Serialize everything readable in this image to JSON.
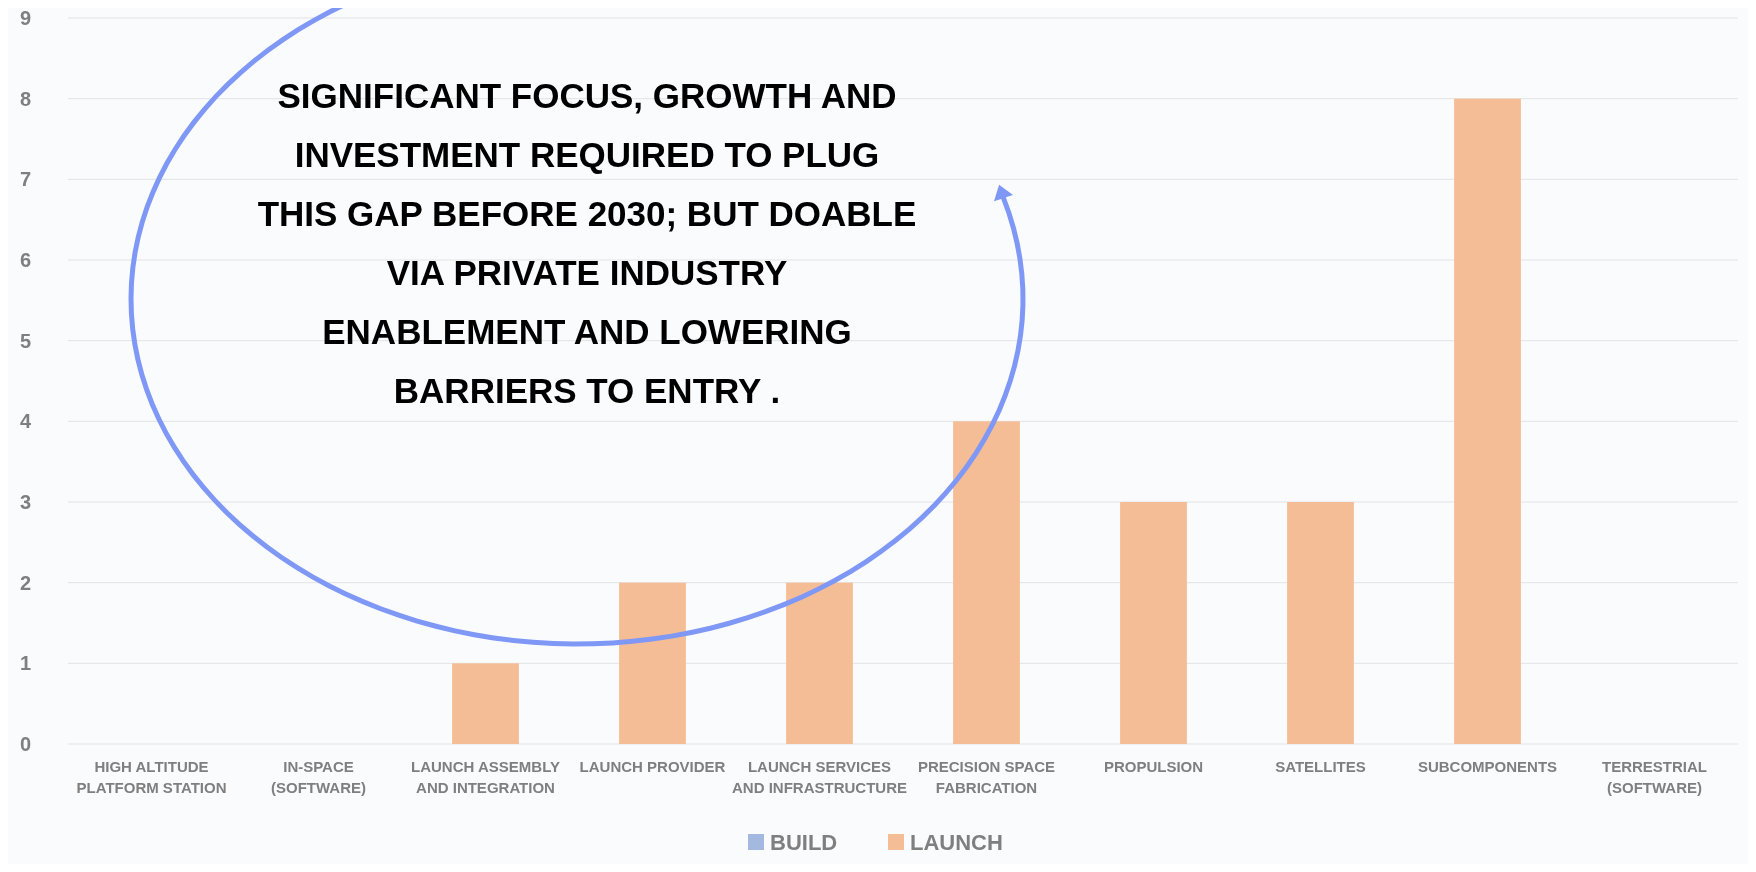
{
  "chart_data": {
    "type": "bar",
    "categories": [
      "HIGH ALTITUDE PLATFORM STATION",
      "IN-SPACE (SOFTWARE)",
      "LAUNCH ASSEMBLY AND INTEGRATION",
      "LAUNCH PROVIDER",
      "LAUNCH SERVICES AND INFRASTRUCTURE",
      "PRECISION SPACE FABRICATION",
      "PROPULSION",
      "SATELLITES",
      "SUBCOMPONENTS",
      "TERRESTRIAL (SOFTWARE)"
    ],
    "series": [
      {
        "name": "BUILD",
        "color": "#a4b9e0",
        "values": [
          null,
          null,
          null,
          null,
          null,
          null,
          null,
          null,
          null,
          null
        ]
      },
      {
        "name": "LAUNCH",
        "color": "#f5bd96",
        "values": [
          null,
          null,
          1,
          2,
          2,
          4,
          3,
          3,
          8,
          null
        ]
      }
    ],
    "ylim": [
      0,
      9
    ],
    "yticks": [
      0,
      1,
      2,
      3,
      4,
      5,
      6,
      7,
      8,
      9
    ],
    "grid": "y",
    "legend": "bottom",
    "annotations": [
      "SIGNIFICANT FOCUS, GROWTH AND\nINVESTMENT REQUIRED TO PLUG\nTHIS GAP BEFORE 2030; BUT DOABLE\nVIA PRIVATE INDUSTRY\nENABLEMENT AND LOWERING\nBARRIERS TO ENTRY ."
    ]
  }
}
